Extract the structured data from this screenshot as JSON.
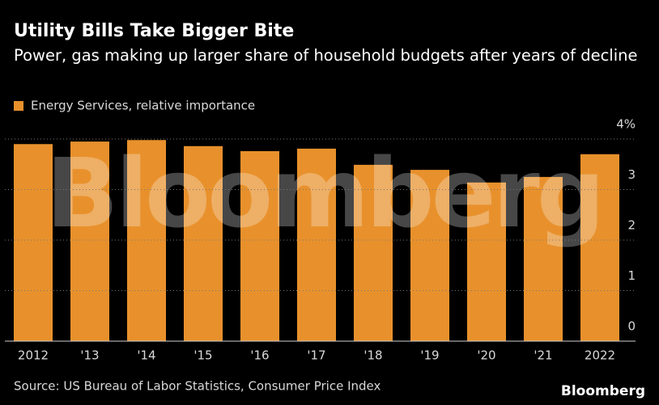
{
  "chart_data": {
    "type": "bar",
    "title": "Utility Bills Take Bigger Bite",
    "subtitle": "Power, gas making up larger share of household budgets after years of decline",
    "categories": [
      "2012",
      "'13",
      "'14",
      "'15",
      "'16",
      "'17",
      "'18",
      "'19",
      "'20",
      "'21",
      "2022"
    ],
    "series": [
      {
        "name": "Energy Services, relative importance",
        "color": "#e8912c",
        "values": [
          3.9,
          3.95,
          3.98,
          3.86,
          3.76,
          3.81,
          3.49,
          3.39,
          3.14,
          3.25,
          3.7
        ]
      }
    ],
    "ylim": [
      0,
      4
    ],
    "yticks": [
      0,
      1,
      2,
      3,
      {
        "value": 4,
        "label": "4%"
      }
    ],
    "grid": true,
    "watermark": "Bloomberg",
    "source": "Source: US Bureau of Labor Statistics, Consumer Price Index",
    "logo": "Bloomberg"
  }
}
